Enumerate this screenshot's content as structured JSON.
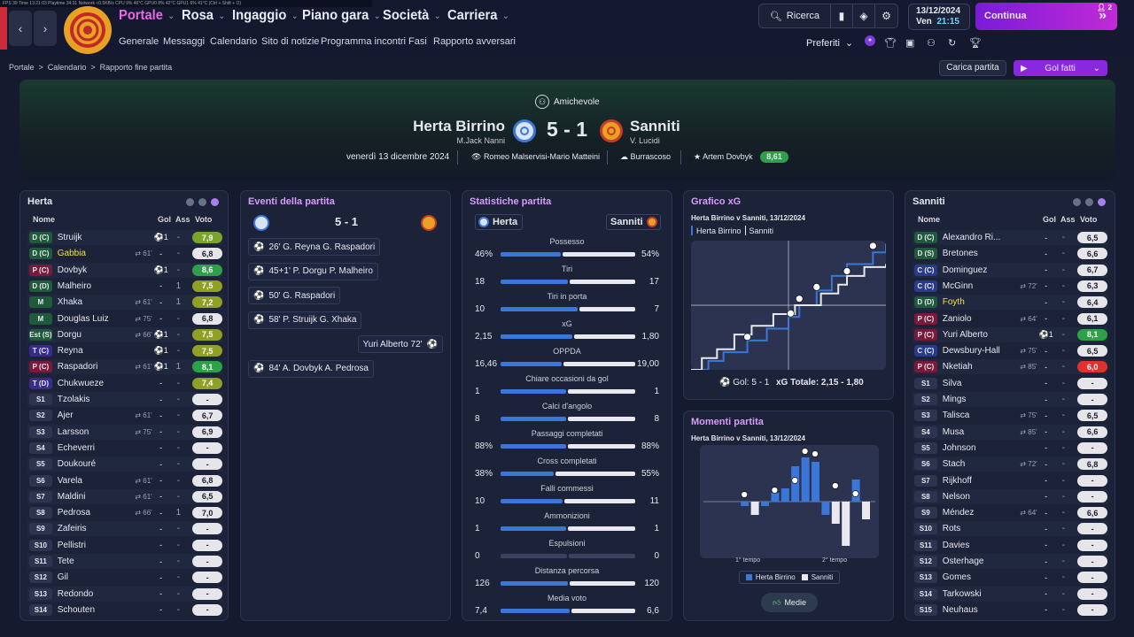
{
  "debug": "FPS 39    Time 13:21:03   Playtime 34:31   Network <0.5KB/s   CPU 9%  46°C   GPU0 8%  42°C   GPU1 6%  41°C   (Ctrl + Shift + O)",
  "nav": {
    "main": [
      "Portale",
      "Rosa",
      "Ingaggio",
      "Piano gara",
      "Società",
      "Carriera"
    ],
    "sub": [
      "Generale",
      "Messaggi",
      "Calendario",
      "Sito di notizie",
      "Programma incontri",
      "Fasi",
      "Rapporto avversari"
    ]
  },
  "tools": {
    "search": "Ricerca"
  },
  "date": {
    "day": "13/12/2024",
    "weekday": "Ven",
    "time": "21:15"
  },
  "continua": {
    "label": "Continua",
    "count": "2"
  },
  "preferiti": "Preferiti",
  "breadcrumb": {
    "a": "Portale",
    "b": "Calendario",
    "c": "Rapporto fine partita"
  },
  "buttons": {
    "carica": "Carica partita",
    "golfatti": "Gol fatti"
  },
  "match": {
    "type": "Amichevole",
    "home": "Herta Birrino",
    "home_coach": "M.Jack Nanni",
    "score": "5 - 1",
    "away": "Sanniti",
    "away_coach": "V. Lucidi",
    "date": "venerdì 13 dicembre 2024",
    "stadium": "Romeo Malservisi-Mario Matteini",
    "weather": "Burrascoso",
    "motm": "Artem Dovbyk",
    "motm_rating": "8,61"
  },
  "colors": {
    "accent": "#a855f7",
    "home": "#3b77d8",
    "away": "#e8e8ee",
    "good": "#2fa04a",
    "bad": "#e03030",
    "mid": "#8fa024"
  },
  "home_panel": {
    "title": "Herta",
    "cols": {
      "name": "Nome",
      "gol": "Gol",
      "ass": "Ass",
      "voto": "Voto"
    },
    "players": [
      {
        "pos": "D (C)",
        "name": "Struijk",
        "sub": "",
        "gol": "⚽1",
        "ass": "-",
        "voto": "7,9",
        "c": "#7ba52a",
        "pc": "#1f5a3a"
      },
      {
        "pos": "D (C)",
        "name": "Gabbia",
        "sub": "61'",
        "gol": "-",
        "ass": "-",
        "voto": "6,8",
        "c": "#e6e6ea",
        "pc": "#1f5a3a",
        "y": 1
      },
      {
        "pos": "P (C)",
        "name": "Dovbyk",
        "sub": "",
        "gol": "⚽1",
        "ass": "-",
        "voto": "8,6",
        "c": "#2fa04a",
        "pc": "#7a1a3a"
      },
      {
        "pos": "D (D)",
        "name": "Malheiro",
        "sub": "",
        "gol": "-",
        "ass": "1",
        "voto": "7,5",
        "c": "#8fa024",
        "pc": "#1f5a3a"
      },
      {
        "pos": "M",
        "name": "Xhaka",
        "sub": "61'",
        "gol": "-",
        "ass": "1",
        "voto": "7,2",
        "c": "#8fa024",
        "pc": "#1f5a3a"
      },
      {
        "pos": "M",
        "name": "Douglas Luiz",
        "sub": "75'",
        "gol": "-",
        "ass": "-",
        "voto": "6,8",
        "c": "#e6e6ea",
        "pc": "#1f5a3a"
      },
      {
        "pos": "Est (S)",
        "name": "Dorgu",
        "sub": "66'",
        "gol": "⚽1",
        "ass": "-",
        "voto": "7,5",
        "c": "#8fa024",
        "pc": "#1f5a3a"
      },
      {
        "pos": "T (C)",
        "name": "Reyna",
        "sub": "",
        "gol": "⚽1",
        "ass": "-",
        "voto": "7,5",
        "c": "#8fa024",
        "pc": "#3a2a8a"
      },
      {
        "pos": "P (C)",
        "name": "Raspadori",
        "sub": "61'",
        "gol": "⚽1",
        "ass": "1",
        "voto": "8,1",
        "c": "#2fa04a",
        "pc": "#7a1a3a"
      },
      {
        "pos": "T (D)",
        "name": "Chukwueze",
        "sub": "",
        "gol": "-",
        "ass": "-",
        "voto": "7,4",
        "c": "#8fa024",
        "pc": "#3a2a8a"
      },
      {
        "pos": "S1",
        "name": "Tzolakis",
        "sub": "",
        "gol": "-",
        "ass": "-",
        "voto": "-",
        "c": "#e6e6ea",
        "pc": "#2e3450"
      },
      {
        "pos": "S2",
        "name": "Ajer",
        "sub": "61'",
        "gol": "-",
        "ass": "-",
        "voto": "6,7",
        "c": "#e6e6ea",
        "pc": "#2e3450"
      },
      {
        "pos": "S3",
        "name": "Larsson",
        "sub": "75'",
        "gol": "-",
        "ass": "-",
        "voto": "6,9",
        "c": "#e6e6ea",
        "pc": "#2e3450"
      },
      {
        "pos": "S4",
        "name": "Echeverri",
        "sub": "",
        "gol": "-",
        "ass": "-",
        "voto": "-",
        "c": "#e6e6ea",
        "pc": "#2e3450"
      },
      {
        "pos": "S5",
        "name": "Doukouré",
        "sub": "",
        "gol": "-",
        "ass": "-",
        "voto": "-",
        "c": "#e6e6ea",
        "pc": "#2e3450"
      },
      {
        "pos": "S6",
        "name": "Varela",
        "sub": "61'",
        "gol": "-",
        "ass": "-",
        "voto": "6,8",
        "c": "#e6e6ea",
        "pc": "#2e3450"
      },
      {
        "pos": "S7",
        "name": "Maldini",
        "sub": "61'",
        "gol": "-",
        "ass": "-",
        "voto": "6,5",
        "c": "#e6e6ea",
        "pc": "#2e3450"
      },
      {
        "pos": "S8",
        "name": "Pedrosa",
        "sub": "66'",
        "gol": "-",
        "ass": "1",
        "voto": "7,0",
        "c": "#e6e6ea",
        "pc": "#2e3450"
      },
      {
        "pos": "S9",
        "name": "Zafeiris",
        "sub": "",
        "gol": "-",
        "ass": "-",
        "voto": "-",
        "c": "#e6e6ea",
        "pc": "#2e3450"
      },
      {
        "pos": "S10",
        "name": "Pellistri",
        "sub": "",
        "gol": "-",
        "ass": "-",
        "voto": "-",
        "c": "#e6e6ea",
        "pc": "#2e3450"
      },
      {
        "pos": "S11",
        "name": "Tete",
        "sub": "",
        "gol": "-",
        "ass": "-",
        "voto": "-",
        "c": "#e6e6ea",
        "pc": "#2e3450"
      },
      {
        "pos": "S12",
        "name": "Gil",
        "sub": "",
        "gol": "-",
        "ass": "-",
        "voto": "-",
        "c": "#e6e6ea",
        "pc": "#2e3450"
      },
      {
        "pos": "S13",
        "name": "Redondo",
        "sub": "",
        "gol": "-",
        "ass": "-",
        "voto": "-",
        "c": "#e6e6ea",
        "pc": "#2e3450"
      },
      {
        "pos": "S14",
        "name": "Schouten",
        "sub": "",
        "gol": "-",
        "ass": "-",
        "voto": "-",
        "c": "#e6e6ea",
        "pc": "#2e3450"
      }
    ]
  },
  "events": {
    "title": "Eventi della partita",
    "score": "5 - 1",
    "items": [
      {
        "side": "home",
        "text": "26' G. Reyna  G. Raspadori"
      },
      {
        "side": "home",
        "text": "45+1' P. Dorgu  P. Malheiro"
      },
      {
        "side": "home",
        "text": "50' G. Raspadori"
      },
      {
        "side": "home",
        "text": "58' P. Struijk  G. Xhaka"
      },
      {
        "side": "away",
        "text": "Yuri Alberto 72'"
      },
      {
        "side": "home",
        "text": "84' A. Dovbyk  A. Pedrosa"
      }
    ]
  },
  "stats": {
    "title": "Statistiche partita",
    "home": "Herta",
    "away": "Sanniti",
    "rows": [
      {
        "label": "Possesso",
        "l": "46%",
        "r": "54%",
        "lv": 46,
        "rv": 54
      },
      {
        "label": "Tiri",
        "l": "18",
        "r": "17",
        "lv": 18,
        "rv": 17
      },
      {
        "label": "Tiri in porta",
        "l": "10",
        "r": "7",
        "lv": 10,
        "rv": 7
      },
      {
        "label": "xG",
        "l": "2,15",
        "r": "1,80",
        "lv": 2.15,
        "rv": 1.8
      },
      {
        "label": "OPPDA",
        "l": "16,46",
        "r": "19,00",
        "lv": 16.46,
        "rv": 19
      },
      {
        "label": "Chiare occasioni da gol",
        "l": "1",
        "r": "1",
        "lv": 1,
        "rv": 1
      },
      {
        "label": "Calci d'angolo",
        "l": "8",
        "r": "8",
        "lv": 8,
        "rv": 8
      },
      {
        "label": "Passaggi completati",
        "l": "88%",
        "r": "88%",
        "lv": 88,
        "rv": 88
      },
      {
        "label": "Cross completati",
        "l": "38%",
        "r": "55%",
        "lv": 38,
        "rv": 55
      },
      {
        "label": "Falli commessi",
        "l": "10",
        "r": "11",
        "lv": 10,
        "rv": 11
      },
      {
        "label": "Ammonizioni",
        "l": "1",
        "r": "1",
        "lv": 1,
        "rv": 1
      },
      {
        "label": "Espulsioni",
        "l": "0",
        "r": "0",
        "lv": 0,
        "rv": 0
      },
      {
        "label": "Distanza percorsa",
        "l": "126",
        "r": "120",
        "lv": 126,
        "rv": 120
      },
      {
        "label": "Media voto",
        "l": "7,4",
        "r": "6,6",
        "lv": 7.4,
        "rv": 6.6
      }
    ]
  },
  "xg": {
    "title": "Grafico xG",
    "subtitle": "Herta Birrino v Sanniti, 13/12/2024",
    "legend_home": "Herta Birrino",
    "legend_away": "Sanniti",
    "footer_gol": "Gol: 5 - 1",
    "footer_xg": "xG Totale: 2,15 - 1,80"
  },
  "momenti": {
    "title": "Momenti partita",
    "subtitle": "Herta Birrino v Sanniti, 13/12/2024",
    "first": "1° tempo",
    "second": "2° tempo",
    "legend_home": "Herta Birrino",
    "legend_away": "Sanniti",
    "button": "Medie"
  },
  "chart_data": [
    {
      "type": "line",
      "title": "Grafico xG",
      "series": [
        {
          "name": "Herta Birrino",
          "color": "#3b77d8",
          "points": [
            [
              0,
              0
            ],
            [
              8,
              0.15
            ],
            [
              15,
              0.3
            ],
            [
              26,
              0.5
            ],
            [
              35,
              0.7
            ],
            [
              45,
              0.9
            ],
            [
              50,
              1.1
            ],
            [
              58,
              1.35
            ],
            [
              65,
              1.6
            ],
            [
              72,
              1.8
            ],
            [
              84,
              2.0
            ],
            [
              90,
              2.15
            ]
          ]
        },
        {
          "name": "Sanniti",
          "color": "#e8e8ee",
          "points": [
            [
              0,
              0
            ],
            [
              5,
              0.2
            ],
            [
              12,
              0.35
            ],
            [
              20,
              0.6
            ],
            [
              28,
              0.75
            ],
            [
              38,
              0.95
            ],
            [
              48,
              1.1
            ],
            [
              60,
              1.3
            ],
            [
              68,
              1.45
            ],
            [
              72,
              1.6
            ],
            [
              80,
              1.75
            ],
            [
              90,
              1.8
            ]
          ]
        }
      ],
      "xlim": [
        0,
        90
      ],
      "ylim": [
        0,
        2.2
      ],
      "half": 45
    },
    {
      "type": "bar",
      "title": "Momenti partita",
      "series": [
        {
          "name": "Herta Birrino",
          "color": "#3b77d8",
          "values": [
            0,
            0,
            0,
            -1,
            0,
            -1,
            2,
            3,
            8,
            10,
            9,
            -3,
            0,
            0,
            5,
            0
          ]
        },
        {
          "name": "Sanniti",
          "color": "#e8e8ee",
          "values": [
            0,
            0,
            0,
            0,
            -3,
            0,
            0,
            0,
            0,
            0,
            0,
            0,
            -5,
            -10,
            0,
            -4
          ]
        }
      ]
    }
  ],
  "away_panel": {
    "title": "Sanniti",
    "cols": {
      "name": "Nome",
      "gol": "Gol",
      "ass": "Ass",
      "voto": "Voto"
    },
    "players": [
      {
        "pos": "D (C)",
        "name": "Alexandro Ri...",
        "sub": "",
        "gol": "-",
        "ass": "-",
        "voto": "6,5",
        "c": "#e6e6ea",
        "pc": "#1f5a3a"
      },
      {
        "pos": "D (S)",
        "name": "Bretones",
        "sub": "",
        "gol": "-",
        "ass": "-",
        "voto": "6,6",
        "c": "#e6e6ea",
        "pc": "#1f5a3a"
      },
      {
        "pos": "C (C)",
        "name": "Dominguez",
        "sub": "",
        "gol": "-",
        "ass": "-",
        "voto": "6,7",
        "c": "#e6e6ea",
        "pc": "#2a3a8a"
      },
      {
        "pos": "C (C)",
        "name": "McGinn",
        "sub": "72'",
        "gol": "-",
        "ass": "-",
        "voto": "6,3",
        "c": "#e6e6ea",
        "pc": "#2a3a8a"
      },
      {
        "pos": "D (D)",
        "name": "Foyth",
        "sub": "",
        "gol": "-",
        "ass": "-",
        "voto": "6,4",
        "c": "#e6e6ea",
        "pc": "#1f5a3a",
        "y": 1
      },
      {
        "pos": "P (C)",
        "name": "Zaniolo",
        "sub": "64'",
        "gol": "-",
        "ass": "-",
        "voto": "6,1",
        "c": "#e6e6ea",
        "pc": "#7a1a3a"
      },
      {
        "pos": "P (C)",
        "name": "Yuri Alberto",
        "sub": "",
        "gol": "⚽1",
        "ass": "-",
        "voto": "8,1",
        "c": "#2fa04a",
        "pc": "#7a1a3a"
      },
      {
        "pos": "C (C)",
        "name": "Dewsbury-Hall",
        "sub": "75'",
        "gol": "-",
        "ass": "-",
        "voto": "6,5",
        "c": "#e6e6ea",
        "pc": "#2a3a8a"
      },
      {
        "pos": "P (C)",
        "name": "Nketiah",
        "sub": "85'",
        "gol": "-",
        "ass": "-",
        "voto": "6,0",
        "c": "#e03030",
        "pc": "#7a1a3a"
      },
      {
        "pos": "S1",
        "name": "Silva",
        "sub": "",
        "gol": "-",
        "ass": "-",
        "voto": "-",
        "c": "#e6e6ea",
        "pc": "#2e3450"
      },
      {
        "pos": "S2",
        "name": "Mings",
        "sub": "",
        "gol": "-",
        "ass": "-",
        "voto": "-",
        "c": "#e6e6ea",
        "pc": "#2e3450"
      },
      {
        "pos": "S3",
        "name": "Talisca",
        "sub": "75'",
        "gol": "-",
        "ass": "-",
        "voto": "6,5",
        "c": "#e6e6ea",
        "pc": "#2e3450"
      },
      {
        "pos": "S4",
        "name": "Musa",
        "sub": "85'",
        "gol": "-",
        "ass": "-",
        "voto": "6,6",
        "c": "#e6e6ea",
        "pc": "#2e3450"
      },
      {
        "pos": "S5",
        "name": "Johnson",
        "sub": "",
        "gol": "-",
        "ass": "-",
        "voto": "-",
        "c": "#e6e6ea",
        "pc": "#2e3450"
      },
      {
        "pos": "S6",
        "name": "Stach",
        "sub": "72'",
        "gol": "-",
        "ass": "-",
        "voto": "6,8",
        "c": "#e6e6ea",
        "pc": "#2e3450"
      },
      {
        "pos": "S7",
        "name": "Rijkhoff",
        "sub": "",
        "gol": "-",
        "ass": "-",
        "voto": "-",
        "c": "#e6e6ea",
        "pc": "#2e3450"
      },
      {
        "pos": "S8",
        "name": "Nelson",
        "sub": "",
        "gol": "-",
        "ass": "-",
        "voto": "-",
        "c": "#e6e6ea",
        "pc": "#2e3450"
      },
      {
        "pos": "S9",
        "name": "Méndez",
        "sub": "64'",
        "gol": "-",
        "ass": "-",
        "voto": "6,6",
        "c": "#e6e6ea",
        "pc": "#2e3450"
      },
      {
        "pos": "S10",
        "name": "Rots",
        "sub": "",
        "gol": "-",
        "ass": "-",
        "voto": "-",
        "c": "#e6e6ea",
        "pc": "#2e3450"
      },
      {
        "pos": "S11",
        "name": "Davies",
        "sub": "",
        "gol": "-",
        "ass": "-",
        "voto": "-",
        "c": "#e6e6ea",
        "pc": "#2e3450"
      },
      {
        "pos": "S12",
        "name": "Osterhage",
        "sub": "",
        "gol": "-",
        "ass": "-",
        "voto": "-",
        "c": "#e6e6ea",
        "pc": "#2e3450"
      },
      {
        "pos": "S13",
        "name": "Gomes",
        "sub": "",
        "gol": "-",
        "ass": "-",
        "voto": "-",
        "c": "#e6e6ea",
        "pc": "#2e3450"
      },
      {
        "pos": "S14",
        "name": "Tarkowski",
        "sub": "",
        "gol": "-",
        "ass": "-",
        "voto": "-",
        "c": "#e6e6ea",
        "pc": "#2e3450"
      },
      {
        "pos": "S15",
        "name": "Neuhaus",
        "sub": "",
        "gol": "-",
        "ass": "-",
        "voto": "-",
        "c": "#e6e6ea",
        "pc": "#2e3450"
      }
    ]
  }
}
